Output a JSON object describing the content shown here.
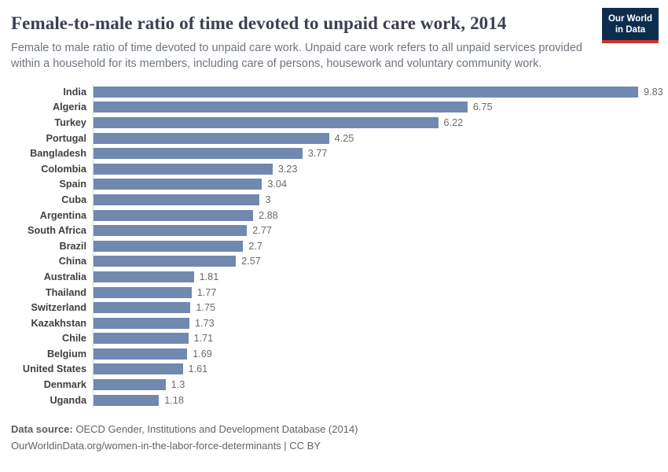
{
  "header": {
    "title": "Female-to-male ratio of time devoted to unpaid care work, 2014",
    "subtitle": "Female to male ratio of time devoted to unpaid care work. Unpaid care work refers to all unpaid services provided within a household for its members, including care of persons, housework and voluntary community work.",
    "logo": {
      "line1": "Our World",
      "line2": "in Data",
      "bg_color": "#0c2d4e",
      "accent_color": "#d0342c"
    }
  },
  "chart_data": {
    "type": "bar",
    "orientation": "horizontal",
    "title": "Female-to-male ratio of time devoted to unpaid care work, 2014",
    "xlabel": "",
    "ylabel": "",
    "xlim": [
      0,
      9.83
    ],
    "grid": false,
    "legend": false,
    "bar_color": "#7189ae",
    "categories": [
      "India",
      "Algeria",
      "Turkey",
      "Portugal",
      "Bangladesh",
      "Colombia",
      "Spain",
      "Cuba",
      "Argentina",
      "South Africa",
      "Brazil",
      "China",
      "Australia",
      "Thailand",
      "Switzerland",
      "Kazakhstan",
      "Chile",
      "Belgium",
      "United States",
      "Denmark",
      "Uganda"
    ],
    "values": [
      9.83,
      6.75,
      6.22,
      4.25,
      3.77,
      3.23,
      3.04,
      3,
      2.88,
      2.77,
      2.7,
      2.57,
      1.81,
      1.77,
      1.75,
      1.73,
      1.71,
      1.69,
      1.61,
      1.3,
      1.18
    ],
    "value_labels": [
      "9.83",
      "6.75",
      "6.22",
      "4.25",
      "3.77",
      "3.23",
      "3.04",
      "3",
      "2.88",
      "2.77",
      "2.7",
      "2.57",
      "1.81",
      "1.77",
      "1.75",
      "1.73",
      "1.71",
      "1.69",
      "1.61",
      "1.3",
      "1.18"
    ]
  },
  "footer": {
    "source_label": "Data source:",
    "source_text": " OECD Gender, Institutions and Development Database (2014)",
    "url": "OurWorldinData.org/women-in-the-labor-force-determinants",
    "separator": " | ",
    "license": "CC BY"
  }
}
